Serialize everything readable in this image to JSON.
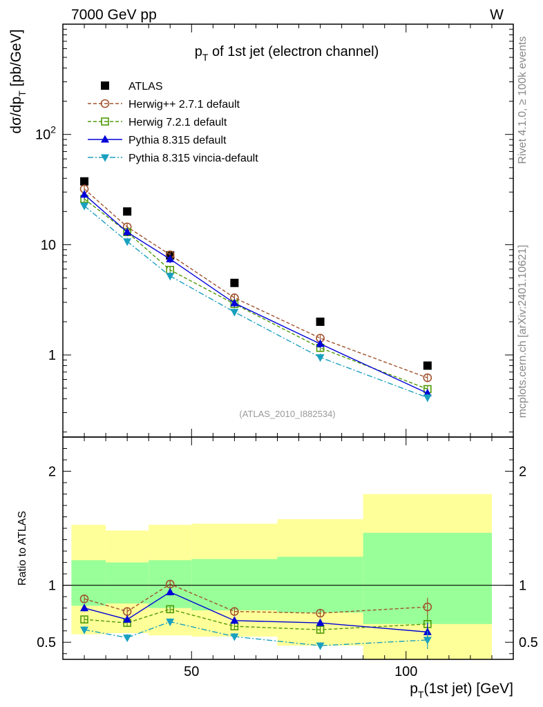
{
  "header": {
    "energy_label": "7000 GeV pp",
    "process_label": "W"
  },
  "side_labels": {
    "rivet": "Rivet 4.1.0, ≥ 100k events",
    "mcplots": "mcplots.cern.ch [arXiv:2401.10621]"
  },
  "chart_data": [
    {
      "type": "scatter",
      "title": "p_T of 1st jet (electron channel)",
      "ylabel": "dσ/dp_T [pb/GeV]",
      "xlabel": "p_T(1st jet) [GeV]",
      "yscale": "log",
      "xlim": [
        20,
        125
      ],
      "ylim": [
        0.18,
        1000
      ],
      "y_tick_labels": [
        {
          "value": 1,
          "label": "1"
        },
        {
          "value": 10,
          "label": "10"
        },
        {
          "value": 100,
          "label": "10",
          "sup": "2"
        }
      ],
      "analysis_id": "(ATLAS_2010_I882534)",
      "x": [
        25,
        35,
        45,
        60,
        80,
        105
      ],
      "series": [
        {
          "name": "ATLAS",
          "color": "#000000",
          "marker": "square-filled",
          "values": [
            37.5,
            20.0,
            8.0,
            4.5,
            2.0,
            0.8
          ]
        },
        {
          "name": "Herwig++ 2.7.1 default",
          "color": "#a0522d",
          "marker": "circle-open",
          "dash": "5,3",
          "values": [
            32.0,
            14.5,
            8.1,
            3.3,
            1.42,
            0.62
          ]
        },
        {
          "name": "Herwig 7.2.1 default",
          "color": "#4e9a06",
          "marker": "square-open",
          "dash": "5,3",
          "values": [
            26.0,
            13.0,
            5.9,
            2.9,
            1.16,
            0.49
          ]
        },
        {
          "name": "Pythia 8.315 default",
          "color": "#0000d8",
          "marker": "triangle-up",
          "dash": "",
          "values": [
            28.5,
            13.0,
            7.4,
            2.95,
            1.26,
            0.45
          ]
        },
        {
          "name": "Pythia 8.315 vincia-default",
          "color": "#1aa0bf",
          "marker": "triangle-down",
          "dash": "8,3,2,3",
          "values": [
            22.5,
            10.7,
            5.2,
            2.45,
            0.95,
            0.41
          ]
        }
      ]
    },
    {
      "type": "scatter",
      "ylabel": "Ratio to ATLAS",
      "xlim": [
        20,
        125
      ],
      "ylim": [
        0.35,
        2.3
      ],
      "y_ticks": [
        0.5,
        1,
        2
      ],
      "y_tick_labels": [
        "0.5",
        "1",
        "2"
      ],
      "x_ticks": [
        50,
        100
      ],
      "x_tick_labels": [
        "50",
        "100"
      ],
      "bin_edges": [
        22,
        30,
        40,
        50,
        70,
        90,
        120
      ],
      "band_yellow": [
        [
          0.57,
          1.53
        ],
        [
          0.58,
          1.48
        ],
        [
          0.56,
          1.53
        ],
        [
          0.55,
          1.54
        ],
        [
          0.47,
          1.58
        ],
        [
          0.34,
          1.8
        ]
      ],
      "band_green": [
        [
          0.82,
          1.22
        ],
        [
          0.84,
          1.2
        ],
        [
          0.8,
          1.22
        ],
        [
          0.78,
          1.23
        ],
        [
          0.76,
          1.25
        ],
        [
          0.66,
          1.46
        ]
      ],
      "series": [
        {
          "name": "Herwig++ 2.7.1 default",
          "values": [
            0.88,
            0.77,
            1.01,
            0.77,
            0.755,
            0.81
          ]
        },
        {
          "name": "Herwig 7.2.1 default",
          "values": [
            0.7,
            0.67,
            0.79,
            0.64,
            0.61,
            0.66
          ]
        },
        {
          "name": "Pythia 8.315 default",
          "values": [
            0.8,
            0.7,
            0.94,
            0.69,
            0.67,
            0.59
          ]
        },
        {
          "name": "Pythia 8.315 vincia-default",
          "values": [
            0.61,
            0.54,
            0.68,
            0.55,
            0.47,
            0.52
          ]
        }
      ]
    }
  ]
}
